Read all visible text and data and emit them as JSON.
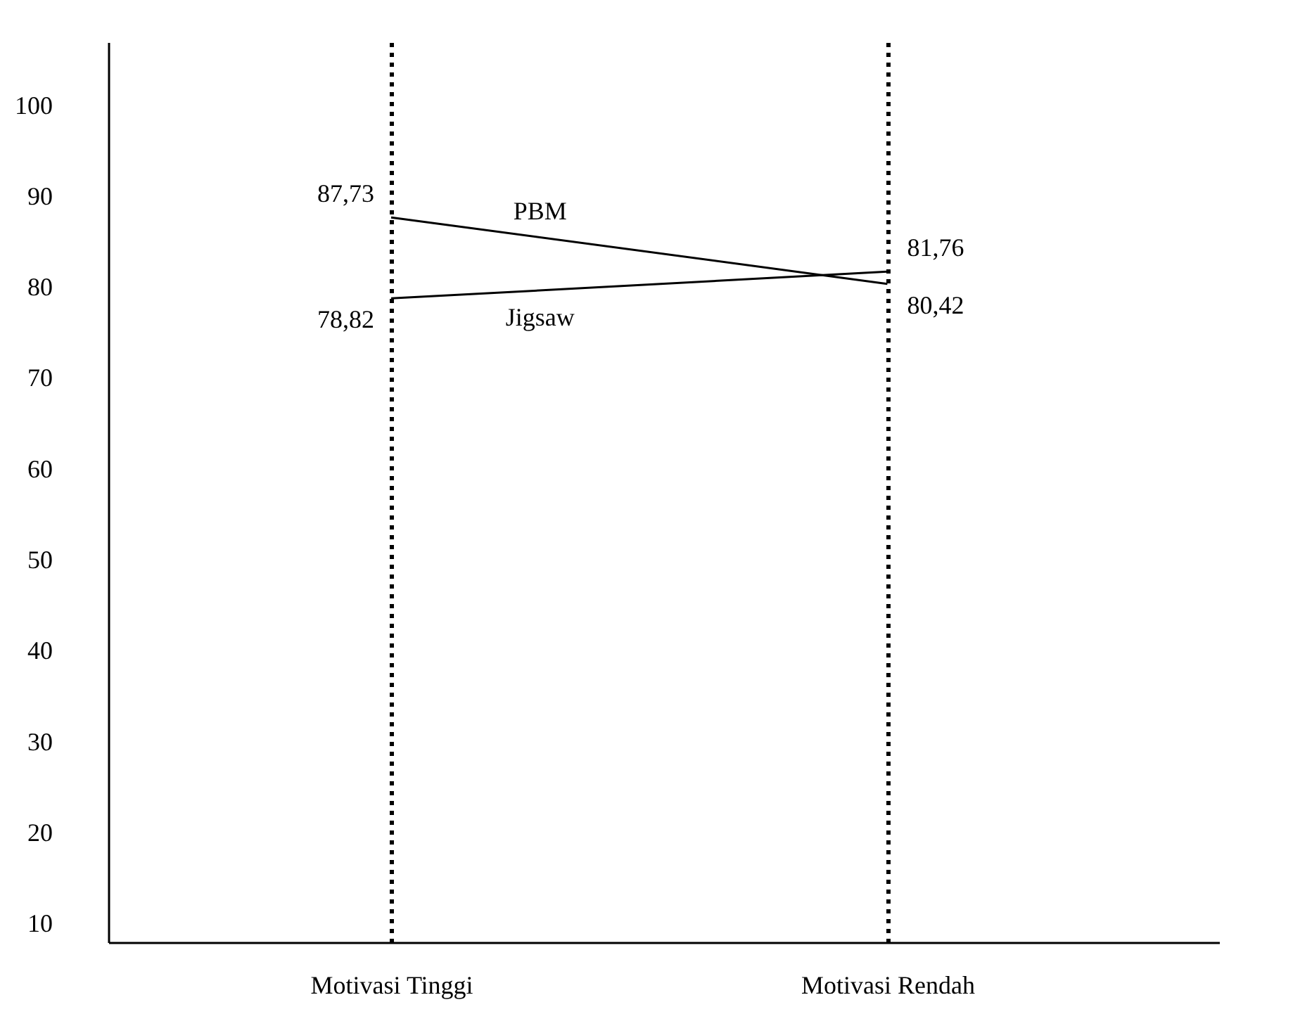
{
  "chart_data": {
    "type": "line",
    "categories": [
      "Motivasi Tinggi",
      "Motivasi Rendah"
    ],
    "series": [
      {
        "name": "PBM",
        "color": "#000000",
        "values": [
          87.73,
          80.42
        ],
        "value_labels": [
          "87,73",
          "80,42"
        ]
      },
      {
        "name": "Jigsaw",
        "color": "#000000",
        "values": [
          78.82,
          81.76
        ],
        "value_labels": [
          "78,82",
          "81,76"
        ]
      }
    ],
    "ylim": [
      8,
      107
    ],
    "yticks": [
      10,
      20,
      30,
      40,
      50,
      60,
      70,
      80,
      90,
      100
    ],
    "grid": "x",
    "marker": "none",
    "line_style": "solid"
  }
}
